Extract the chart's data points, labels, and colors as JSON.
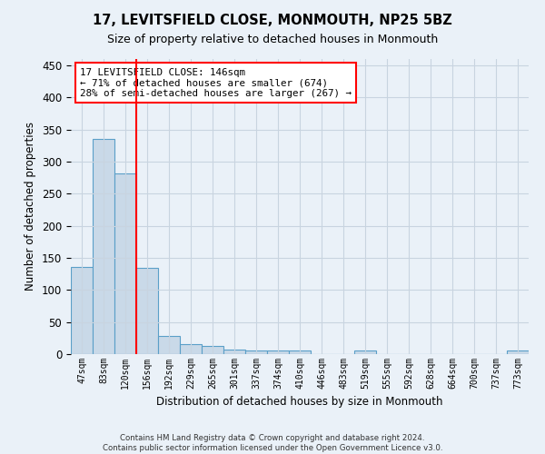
{
  "title": "17, LEVITSFIELD CLOSE, MONMOUTH, NP25 5BZ",
  "subtitle": "Size of property relative to detached houses in Monmouth",
  "xlabel": "Distribution of detached houses by size in Monmouth",
  "ylabel": "Number of detached properties",
  "footer": "Contains HM Land Registry data © Crown copyright and database right 2024.\nContains public sector information licensed under the Open Government Licence v3.0.",
  "categories": [
    "47sqm",
    "83sqm",
    "120sqm",
    "156sqm",
    "192sqm",
    "229sqm",
    "265sqm",
    "301sqm",
    "337sqm",
    "374sqm",
    "410sqm",
    "446sqm",
    "483sqm",
    "519sqm",
    "555sqm",
    "592sqm",
    "628sqm",
    "664sqm",
    "700sqm",
    "737sqm",
    "773sqm"
  ],
  "values": [
    136,
    336,
    282,
    135,
    29,
    16,
    13,
    7,
    6,
    5,
    5,
    0,
    0,
    5,
    0,
    0,
    0,
    0,
    0,
    0,
    5
  ],
  "bar_color": "#c9d9e8",
  "bar_edge_color": "#5a9fc8",
  "bar_edge_width": 0.8,
  "ylim": [
    0,
    460
  ],
  "yticks": [
    0,
    50,
    100,
    150,
    200,
    250,
    300,
    350,
    400,
    450
  ],
  "property_line_color": "red",
  "annotation_text": "17 LEVITSFIELD CLOSE: 146sqm\n← 71% of detached houses are smaller (674)\n28% of semi-detached houses are larger (267) →",
  "annotation_box_color": "white",
  "annotation_box_edge_color": "red",
  "grid_color": "#c8d4e0",
  "background_color": "#eaf1f8",
  "axes_background_color": "#eaf1f8"
}
